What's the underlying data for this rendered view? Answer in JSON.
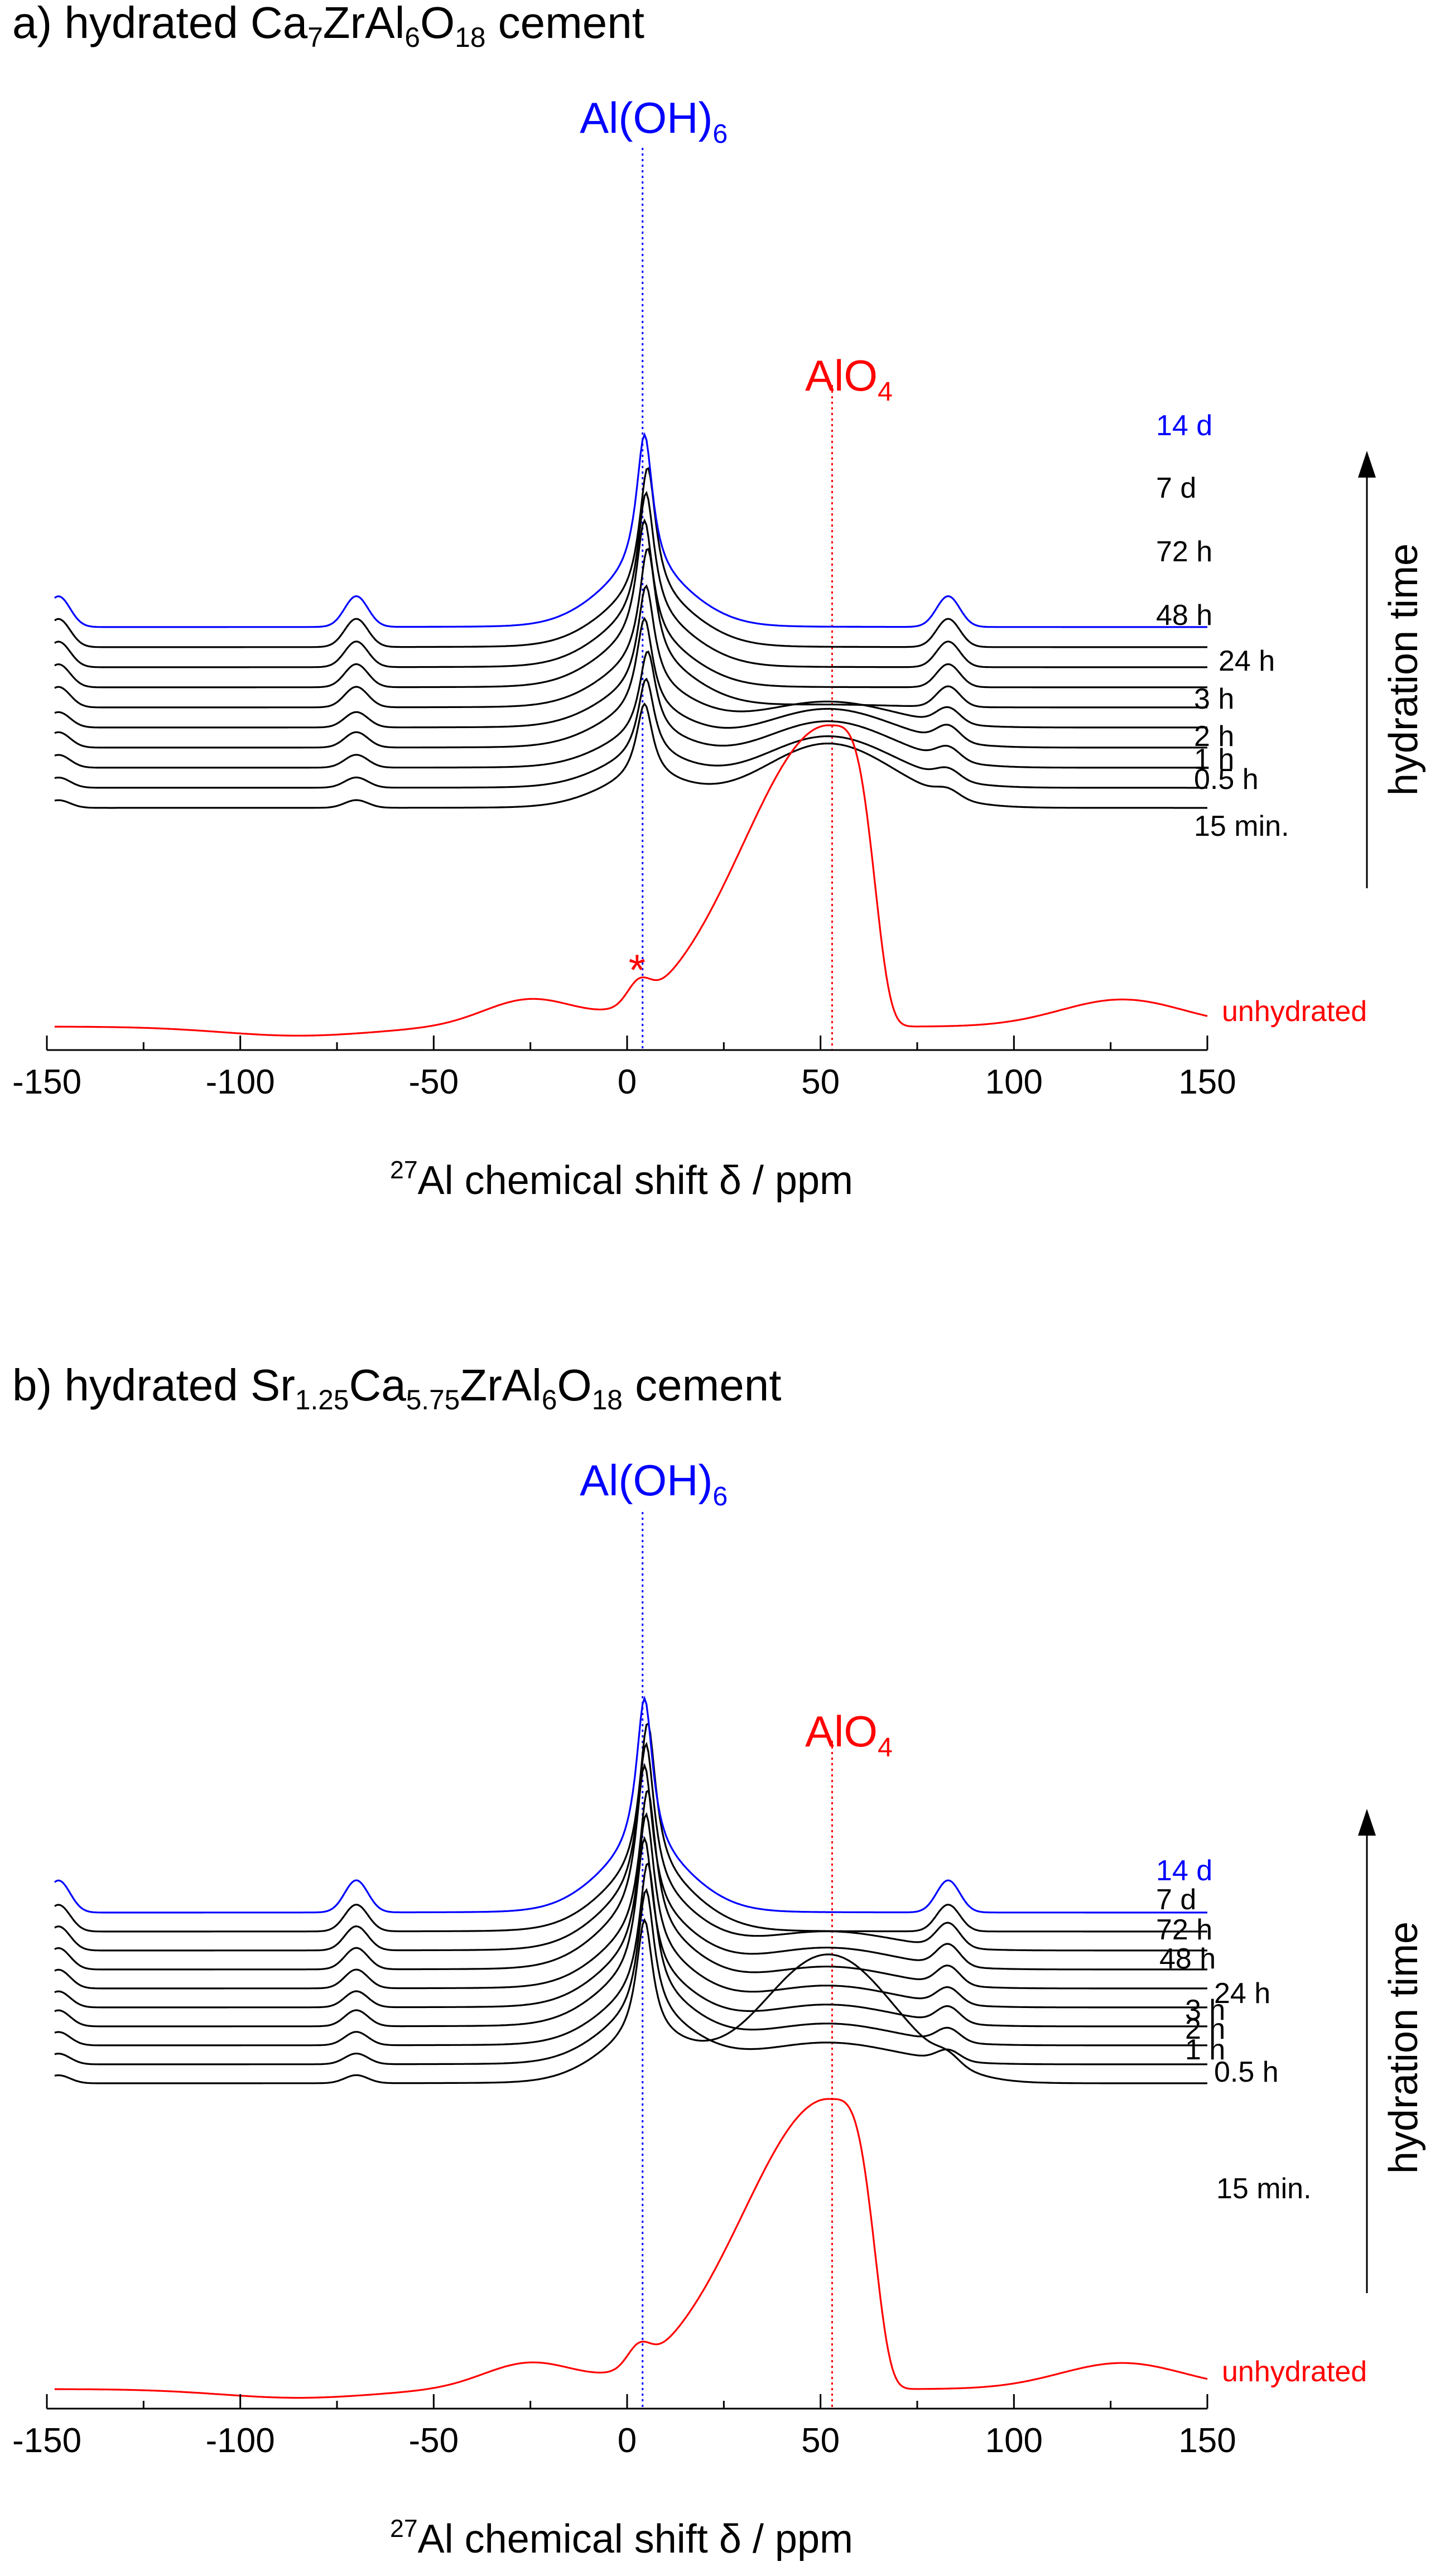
{
  "chart_data": [
    {
      "type": "line",
      "panel": "a",
      "title": "a) hydrated Ca7ZrAl6O18 cement",
      "title_parts": [
        "a) hydrated Ca",
        "7",
        "ZrAl",
        "6",
        "O",
        "18",
        " cement"
      ],
      "xlabel": "27Al chemical shift δ / ppm",
      "xlabel_parts": [
        "27",
        "Al chemical shift ",
        "δ",
        " / ppm"
      ],
      "xlim": [
        -150,
        150
      ],
      "xticks": [
        -150,
        -100,
        -50,
        0,
        50,
        100,
        150
      ],
      "right_label": "hydration time",
      "annotations": [
        {
          "name": "aloh6",
          "parts": [
            "Al(OH)",
            "6"
          ],
          "x": 4,
          "color": "#0000ff"
        },
        {
          "name": "alo4",
          "parts": [
            "AlO",
            "4"
          ],
          "x": 53,
          "color": "#ff0000"
        }
      ],
      "asterisk": {
        "text": "*",
        "x": 2,
        "color": "#ff0000"
      },
      "series": [
        {
          "name": "15 min.",
          "color": "#000000",
          "offset": 0,
          "peak": 40,
          "alo4": 25,
          "sb": 3
        },
        {
          "name": "0.5 h",
          "color": "#000000",
          "offset": 1,
          "peak": 42,
          "alo4": 20,
          "sb": 4
        },
        {
          "name": "1 h",
          "color": "#000000",
          "offset": 2,
          "peak": 45,
          "alo4": 18,
          "sb": 5
        },
        {
          "name": "2 h",
          "color": "#000000",
          "offset": 3,
          "peak": 50,
          "alo4": 15,
          "sb": 6
        },
        {
          "name": "3 h",
          "color": "#000000",
          "offset": 4,
          "peak": 55,
          "alo4": 10,
          "sb": 6
        },
        {
          "name": "24 h",
          "color": "#000000",
          "offset": 5,
          "peak": 62,
          "alo4": 1,
          "sb": 8
        },
        {
          "name": "48 h",
          "color": "#000000",
          "offset": 6,
          "peak": 65,
          "alo4": 0,
          "sb": 9
        },
        {
          "name": "72 h",
          "color": "#000000",
          "offset": 7,
          "peak": 68,
          "alo4": 0,
          "sb": 10
        },
        {
          "name": "7 d",
          "color": "#000000",
          "offset": 8,
          "peak": 70,
          "alo4": 0,
          "sb": 11
        },
        {
          "name": "14 d",
          "color": "#0000ff",
          "offset": 9,
          "peak": 75,
          "alo4": 0,
          "sb": 12
        },
        {
          "name": "unhydrated",
          "color": "#ff0000",
          "offset": -1,
          "peak": 0,
          "alo4": 0,
          "sb": 0
        }
      ]
    },
    {
      "type": "line",
      "panel": "b",
      "title": "b) hydrated Sr1.25Ca5.75ZrAl6O18 cement",
      "title_parts": [
        "b) hydrated Sr",
        "1.25",
        "Ca",
        "5.75",
        "ZrAl",
        "6",
        "O",
        "18",
        " cement"
      ],
      "xlabel": "27Al chemical shift δ / ppm",
      "xlabel_parts": [
        "27",
        "Al chemical shift ",
        "δ",
        " / ppm"
      ],
      "xlim": [
        -150,
        150
      ],
      "xticks": [
        -150,
        -100,
        -50,
        0,
        50,
        100,
        150
      ],
      "right_label": "hydration time",
      "annotations": [
        {
          "name": "aloh6",
          "parts": [
            "Al(OH)",
            "6"
          ],
          "x": 4,
          "color": "#0000ff"
        },
        {
          "name": "alo4",
          "parts": [
            "AlO",
            "4"
          ],
          "x": 53,
          "color": "#ff0000"
        }
      ],
      "series": [
        {
          "name": "15 min.",
          "color": "#000000",
          "offset": 0,
          "peak": 60,
          "alo4": 48,
          "sb": 3
        },
        {
          "name": "0.5 h",
          "color": "#000000",
          "offset": 1,
          "peak": 65,
          "alo4": 8,
          "sb": 4
        },
        {
          "name": "1 h",
          "color": "#000000",
          "offset": 2,
          "peak": 68,
          "alo4": 8,
          "sb": 5
        },
        {
          "name": "2 h",
          "color": "#000000",
          "offset": 3,
          "peak": 70,
          "alo4": 8,
          "sb": 6
        },
        {
          "name": "3 h",
          "color": "#000000",
          "offset": 4,
          "peak": 72,
          "alo4": 8,
          "sb": 6
        },
        {
          "name": "24 h",
          "color": "#000000",
          "offset": 5,
          "peak": 74,
          "alo4": 8,
          "sb": 7
        },
        {
          "name": "48 h",
          "color": "#000000",
          "offset": 6,
          "peak": 76,
          "alo4": 8,
          "sb": 8
        },
        {
          "name": "72 h",
          "color": "#000000",
          "offset": 7,
          "peak": 77,
          "alo4": 7,
          "sb": 9
        },
        {
          "name": "7 d",
          "color": "#000000",
          "offset": 8,
          "peak": 78,
          "alo4": 0,
          "sb": 10
        },
        {
          "name": "14 d",
          "color": "#0000ff",
          "offset": 9,
          "peak": 80,
          "alo4": 0,
          "sb": 12
        },
        {
          "name": "unhydrated",
          "color": "#ff0000",
          "offset": -1,
          "peak": 0,
          "alo4": 0,
          "sb": 0
        }
      ]
    }
  ]
}
